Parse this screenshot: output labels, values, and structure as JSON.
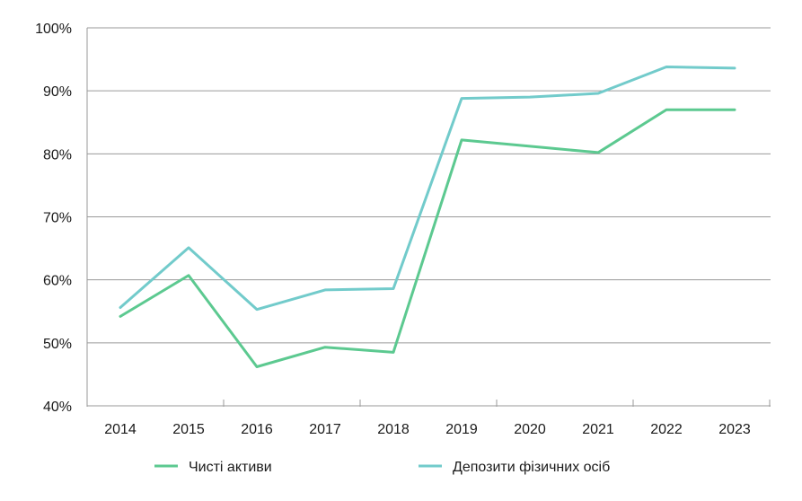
{
  "chart_data": {
    "type": "line",
    "x": [
      "2014",
      "2015",
      "2016",
      "2017",
      "2018",
      "2019",
      "2020",
      "2021",
      "2022",
      "2023"
    ],
    "y_ticks": [
      "100%",
      "90%",
      "80%",
      "70%",
      "60%",
      "50%",
      "40%"
    ],
    "y_tick_values": [
      100,
      90,
      80,
      70,
      60,
      50,
      40
    ],
    "ylim": [
      40,
      100
    ],
    "grid": "horizontal",
    "legend_position": "bottom",
    "series": [
      {
        "name": "Чисті активи",
        "color": "#5cc990",
        "values": [
          54.2,
          60.7,
          46.2,
          49.3,
          48.5,
          82.2,
          81.2,
          80.2,
          87.0,
          87.0
        ]
      },
      {
        "name": "Депозити фізичних осіб",
        "color": "#72cbcb",
        "values": [
          55.6,
          65.1,
          55.3,
          58.4,
          58.6,
          88.8,
          89.0,
          89.6,
          93.8,
          93.6
        ]
      }
    ]
  }
}
